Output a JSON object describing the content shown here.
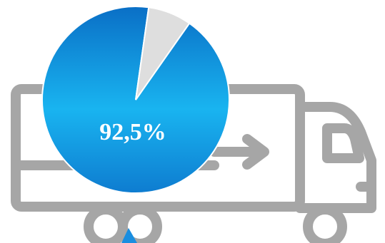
{
  "chart_data": {
    "type": "pie",
    "values": [
      92.5,
      7.5
    ],
    "value_labels": [
      "92,5%",
      null
    ],
    "colors": [
      "#1a8ee0",
      "#dedede"
    ]
  }
}
